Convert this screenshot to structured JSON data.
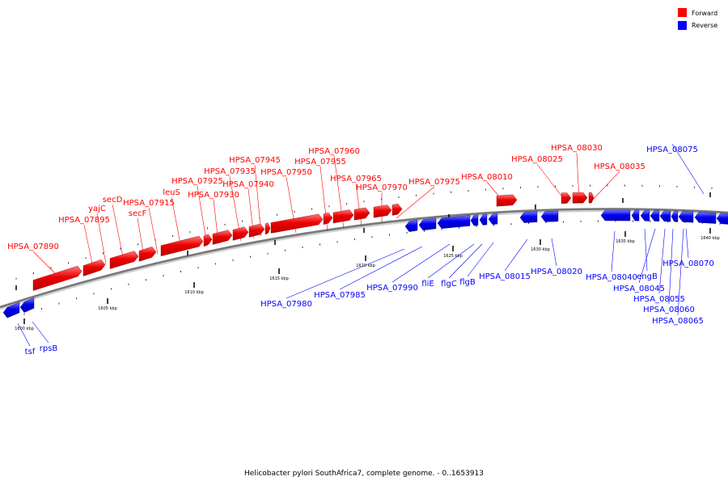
{
  "caption": "Helicobacter pylori SouthAfrica7, complete genome. - 0..1653913",
  "legend": {
    "forward_label": "Forward",
    "reverse_label": "Reverse",
    "forward_color": "#ff0000",
    "reverse_color": "#0000ff"
  },
  "ticks": [
    "1600 kbp",
    "1605 kbp",
    "1610 kbp",
    "1615 kbp",
    "1620 kbp",
    "1625 kbp",
    "1630 kbp",
    "1635 kbp",
    "1640 kbp"
  ],
  "forward_genes": [
    {
      "name": "HPSA_07890"
    },
    {
      "name": "HPSA_07895"
    },
    {
      "name": "yajC"
    },
    {
      "name": "secD"
    },
    {
      "name": "secF"
    },
    {
      "name": "HPSA_07915"
    },
    {
      "name": "leuS"
    },
    {
      "name": "HPSA_07925"
    },
    {
      "name": "HPSA_07930"
    },
    {
      "name": "HPSA_07935"
    },
    {
      "name": "HPSA_07940"
    },
    {
      "name": "HPSA_07945"
    },
    {
      "name": "HPSA_07950"
    },
    {
      "name": "HPSA_07955"
    },
    {
      "name": "HPSA_07960"
    },
    {
      "name": "HPSA_07965"
    },
    {
      "name": "HPSA_07970"
    },
    {
      "name": "HPSA_07975"
    },
    {
      "name": "HPSA_08010"
    },
    {
      "name": "HPSA_08025"
    },
    {
      "name": "HPSA_08030"
    },
    {
      "name": "HPSA_08035"
    }
  ],
  "reverse_genes": [
    {
      "name": "tsf"
    },
    {
      "name": "rpsB"
    },
    {
      "name": "HPSA_07980"
    },
    {
      "name": "HPSA_07985"
    },
    {
      "name": "HPSA_07990"
    },
    {
      "name": "fliE"
    },
    {
      "name": "flgC"
    },
    {
      "name": "flgB"
    },
    {
      "name": "HPSA_08015"
    },
    {
      "name": "HPSA_08020"
    },
    {
      "name": "HPSA_08040"
    },
    {
      "name": "engB"
    },
    {
      "name": "HPSA_08045"
    },
    {
      "name": "HPSA_08055"
    },
    {
      "name": "HPSA_08060"
    },
    {
      "name": "HPSA_08065"
    },
    {
      "name": "HPSA_08070"
    },
    {
      "name": "HPSA_08075"
    }
  ]
}
